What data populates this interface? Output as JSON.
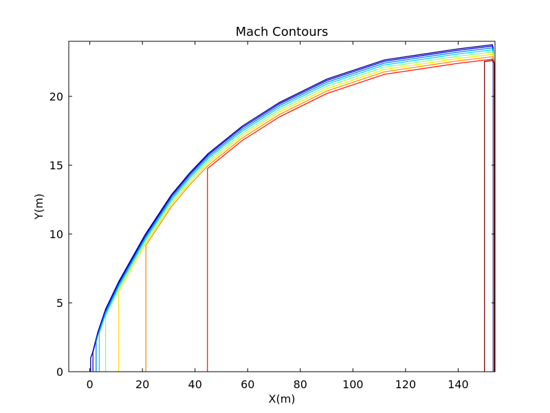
{
  "chart_data": {
    "type": "line",
    "title": "Mach Contours",
    "xlabel": "X(m)",
    "ylabel": "Y(m)",
    "xlim": [
      -8,
      154
    ],
    "ylim": [
      0,
      24
    ],
    "xticks": [
      0,
      20,
      40,
      60,
      80,
      100,
      120,
      140
    ],
    "yticks": [
      0,
      5,
      10,
      15,
      20
    ],
    "grid": false,
    "legend": "none",
    "boundary": {
      "x": [
        0,
        1,
        3,
        6,
        11,
        21,
        31,
        38,
        45,
        58,
        72,
        90,
        112,
        140,
        153
      ],
      "y": [
        1,
        1.4,
        2.9,
        4.6,
        6.6,
        10.0,
        12.9,
        14.5,
        15.9,
        17.9,
        19.6,
        21.3,
        22.7,
        23.5,
        23.8
      ]
    },
    "contours": [
      {
        "color": "#00007f",
        "offset": 0.05,
        "x_end": 0.3,
        "vtop": 1.0
      },
      {
        "color": "#0000ff",
        "offset": 0.15,
        "x_end": 1.2,
        "vtop": 1.5
      },
      {
        "color": "#0080ff",
        "offset": 0.28,
        "x_end": 2.4,
        "vtop": 2.4
      },
      {
        "color": "#00d4ff",
        "offset": 0.42,
        "x_end": 3.6,
        "vtop": 3.0
      },
      {
        "color": "#7fff7f",
        "offset": 0.58,
        "x_end": 6.0,
        "vtop": 4.2
      },
      {
        "color": "#ffe600",
        "offset": 0.75,
        "x_end": 11.0,
        "vtop": 6.2
      },
      {
        "color": "#ff8c00",
        "offset": 0.92,
        "x_end": 21.3,
        "vtop": 9.8
      },
      {
        "color": "#ff1a00",
        "offset": 1.1,
        "x_end": 44.7,
        "vtop": 15.0
      },
      {
        "color": "#7f0000",
        "offset": 1.2,
        "x_end": 150.0,
        "vtop": 22.6
      }
    ]
  }
}
